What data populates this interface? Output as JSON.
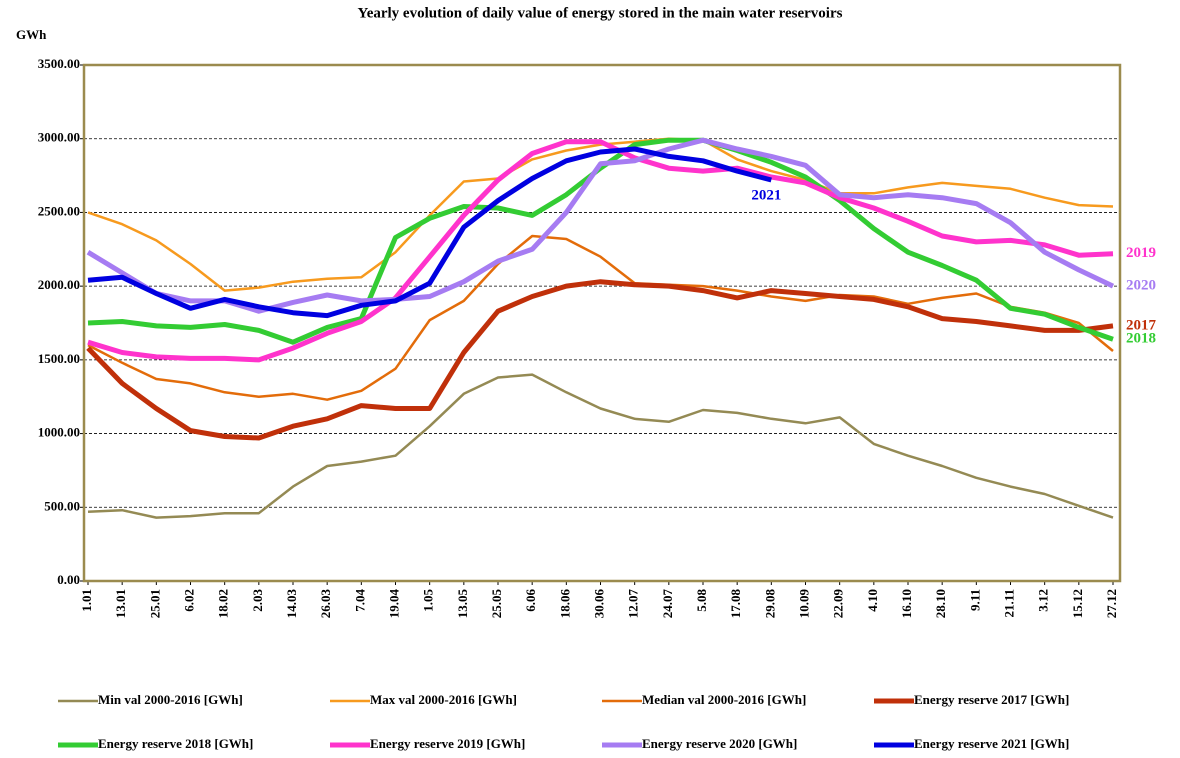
{
  "chart_data": {
    "type": "line",
    "title": "Yearly evolution of daily value of energy stored in the main water reservoirs",
    "y_label": "GWh",
    "categories": [
      "1.01",
      "13.01",
      "25.01",
      "6.02",
      "18.02",
      "2.03",
      "14.03",
      "26.03",
      "7.04",
      "19.04",
      "1.05",
      "13.05",
      "25.05",
      "6.06",
      "18.06",
      "30.06",
      "12.07",
      "24.07",
      "5.08",
      "17.08",
      "29.08",
      "10.09",
      "22.09",
      "4.10",
      "16.10",
      "28.10",
      "9.11",
      "21.11",
      "3.12",
      "15.12",
      "27.12"
    ],
    "ylim": [
      0,
      3500
    ],
    "yticks": [
      {
        "value": 0,
        "label": "0.00"
      },
      {
        "value": 500,
        "label": "500.00"
      },
      {
        "value": 1000,
        "label": "1000.00"
      },
      {
        "value": 1500,
        "label": "1500.00"
      },
      {
        "value": 2000,
        "label": "2000.00"
      },
      {
        "value": 2500,
        "label": "2500.00"
      },
      {
        "value": 3000,
        "label": "3000.00"
      },
      {
        "value": 3500,
        "label": "3500.00"
      }
    ],
    "grid": true,
    "series": [
      {
        "name": "Min val 2000-2016 [GWh]",
        "color": "#948a54",
        "width": 2.5,
        "values": [
          470,
          480,
          430,
          440,
          460,
          460,
          640,
          780,
          810,
          850,
          1050,
          1270,
          1380,
          1400,
          1280,
          1170,
          1100,
          1080,
          1160,
          1140,
          1100,
          1070,
          1110,
          930,
          850,
          780,
          700,
          640,
          590,
          510,
          430
        ]
      },
      {
        "name": "Max val 2000-2016 [GWh]",
        "color": "#f79a1e",
        "width": 2.5,
        "values": [
          2500,
          2420,
          2310,
          2150,
          1970,
          1990,
          2030,
          2050,
          2060,
          2230,
          2480,
          2710,
          2730,
          2860,
          2920,
          2960,
          2980,
          3000,
          2990,
          2860,
          2780,
          2720,
          2630,
          2630,
          2670,
          2700,
          2680,
          2660,
          2600,
          2550,
          2540
        ]
      },
      {
        "name": "Median val 2000-2016 [GWh]",
        "color": "#e36c0a",
        "width": 2.5,
        "values": [
          1600,
          1480,
          1370,
          1340,
          1280,
          1250,
          1270,
          1230,
          1290,
          1440,
          1770,
          1900,
          2150,
          2340,
          2320,
          2200,
          2020,
          2010,
          2000,
          1970,
          1930,
          1900,
          1940,
          1930,
          1880,
          1920,
          1950,
          1860,
          1820,
          1750,
          1560
        ]
      },
      {
        "name": "Energy reserve 2017 [GWh]",
        "color": "#c0300a",
        "width": 5,
        "end_label": "2017",
        "values": [
          1580,
          1340,
          1170,
          1020,
          980,
          970,
          1050,
          1100,
          1190,
          1170,
          1170,
          1550,
          1830,
          1930,
          2000,
          2030,
          2010,
          2000,
          1970,
          1920,
          1970,
          1950,
          1930,
          1910,
          1860,
          1780,
          1760,
          1730,
          1700,
          1700,
          1730
        ]
      },
      {
        "name": "Energy reserve 2018 [GWh]",
        "color": "#33cc33",
        "width": 5,
        "end_label": "2018",
        "values": [
          1750,
          1760,
          1730,
          1720,
          1740,
          1700,
          1620,
          1720,
          1780,
          2330,
          2460,
          2540,
          2530,
          2480,
          2620,
          2800,
          2960,
          2990,
          2990,
          2920,
          2840,
          2740,
          2580,
          2390,
          2230,
          2140,
          2040,
          1850,
          1810,
          1720,
          1640
        ]
      },
      {
        "name": "Energy reserve 2019 [GWh]",
        "color": "#ff33cc",
        "width": 5,
        "end_label": "2019",
        "values": [
          1620,
          1550,
          1520,
          1510,
          1510,
          1500,
          1580,
          1680,
          1760,
          1920,
          2200,
          2480,
          2720,
          2900,
          2980,
          2980,
          2870,
          2800,
          2780,
          2800,
          2740,
          2700,
          2600,
          2530,
          2440,
          2340,
          2300,
          2310,
          2280,
          2210,
          2220
        ]
      },
      {
        "name": "Energy reserve 2020 [GWh]",
        "color": "#a67cf2",
        "width": 5,
        "end_label": "2020",
        "values": [
          2230,
          2090,
          1950,
          1900,
          1900,
          1830,
          1890,
          1940,
          1900,
          1910,
          1930,
          2030,
          2170,
          2250,
          2500,
          2830,
          2850,
          2930,
          2990,
          2930,
          2880,
          2820,
          2620,
          2600,
          2620,
          2600,
          2560,
          2430,
          2230,
          2110,
          2000
        ]
      },
      {
        "name": "Energy reserve 2021 [GWh]",
        "color": "#0000e0",
        "width": 5,
        "end_label": "2021",
        "values": [
          2040,
          2060,
          1950,
          1850,
          1910,
          1860,
          1820,
          1800,
          1870,
          1900,
          2020,
          2400,
          2580,
          2730,
          2850,
          2910,
          2930,
          2880,
          2850,
          2780,
          2720,
          null,
          null,
          null,
          null,
          null,
          null,
          null,
          null,
          null,
          null
        ]
      }
    ]
  }
}
